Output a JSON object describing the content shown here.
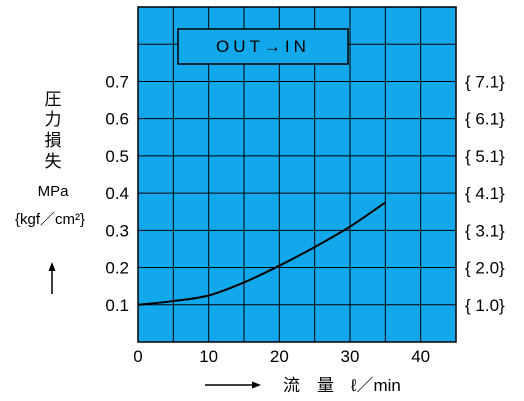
{
  "chart_data": {
    "type": "line",
    "annotation": "OUT→IN",
    "ylabel_chars": [
      "圧",
      "力",
      "損",
      "失"
    ],
    "ylabel_unit_1": "MPa",
    "ylabel_unit_2": "{kgf／cm²}",
    "xlabel": "流　量　ℓ／min",
    "xlim": [
      0,
      45
    ],
    "ylim": [
      0,
      0.9
    ],
    "x_ticks": [
      0,
      10,
      20,
      30,
      40
    ],
    "x_tick_labels": [
      "0",
      "10",
      "20",
      "30",
      "40"
    ],
    "y_ticks": [
      0.1,
      0.2,
      0.3,
      0.4,
      0.5,
      0.6,
      0.7
    ],
    "y_tick_labels": [
      "0.1",
      "0.2",
      "0.3",
      "0.4",
      "0.5",
      "0.6",
      "0.7"
    ],
    "y2_tick_labels": [
      "{ 1.0}",
      "{ 2.0}",
      "{ 3.1}",
      "{ 4.1}",
      "{ 5.1}",
      "{ 6.1}",
      "{ 7.1}"
    ],
    "grid": true,
    "colors": {
      "plot_background": "#11a9ec",
      "grid": "#000000",
      "line": "#000000"
    },
    "series": [
      {
        "x": [
          0,
          5,
          10,
          15,
          20,
          25,
          30,
          35
        ],
        "y": [
          0.1,
          0.11,
          0.125,
          0.16,
          0.205,
          0.255,
          0.31,
          0.375
        ]
      }
    ]
  }
}
